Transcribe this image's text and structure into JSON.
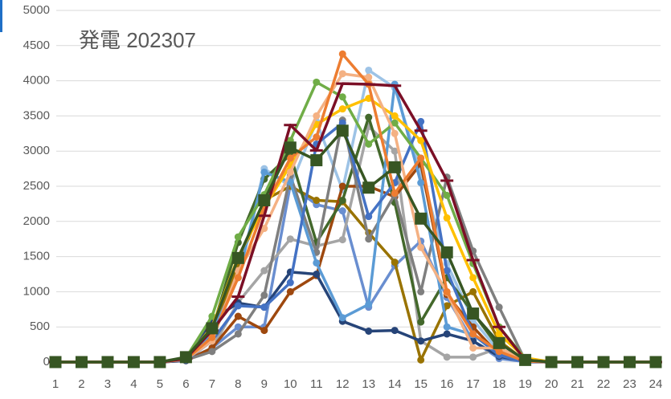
{
  "chart_data": {
    "type": "line",
    "title": "発電 202307",
    "categories": [
      "1",
      "2",
      "3",
      "4",
      "5",
      "6",
      "7",
      "8",
      "9",
      "10",
      "11",
      "12",
      "13",
      "14",
      "15",
      "16",
      "17",
      "18",
      "19",
      "20",
      "21",
      "22",
      "23",
      "24"
    ],
    "ylim": [
      0,
      5000
    ],
    "yticks": [
      0,
      500,
      1000,
      1500,
      2000,
      2500,
      3000,
      3500,
      4000,
      4500,
      5000
    ],
    "grid": true,
    "series": [
      {
        "color": "#698ed0",
        "marker": "circle",
        "values": [
          0,
          0,
          0,
          0,
          0,
          30,
          200,
          500,
          500,
          2520,
          2240,
          2150,
          780,
          1370,
          1720,
          920,
          300,
          50,
          5,
          0,
          0,
          0,
          0,
          0
        ]
      },
      {
        "color": "#9dc3e6",
        "marker": "circle",
        "values": [
          0,
          0,
          0,
          0,
          0,
          40,
          400,
          1200,
          2750,
          2500,
          3420,
          2450,
          4150,
          3900,
          2700,
          1400,
          600,
          150,
          20,
          0,
          0,
          0,
          0,
          0
        ]
      },
      {
        "color": "#a5a5a5",
        "marker": "circle",
        "values": [
          0,
          0,
          0,
          0,
          0,
          30,
          200,
          850,
          1300,
          1750,
          1650,
          1740,
          3350,
          3000,
          300,
          70,
          70,
          200,
          20,
          0,
          0,
          0,
          0,
          0
        ]
      },
      {
        "color": "#997300",
        "marker": "circle",
        "values": [
          0,
          0,
          0,
          0,
          0,
          30,
          400,
          1400,
          2300,
          2500,
          2300,
          2280,
          1840,
          1420,
          30,
          800,
          1000,
          300,
          20,
          0,
          0,
          0,
          0,
          0
        ]
      },
      {
        "color": "#9e480e",
        "marker": "circle",
        "values": [
          0,
          0,
          0,
          0,
          0,
          20,
          200,
          650,
          450,
          1000,
          1230,
          2500,
          2500,
          2350,
          2820,
          960,
          500,
          100,
          10,
          0,
          0,
          0,
          0,
          0
        ]
      },
      {
        "color": "#264478",
        "marker": "circle",
        "values": [
          0,
          0,
          0,
          0,
          0,
          20,
          600,
          840,
          780,
          1280,
          1250,
          580,
          440,
          450,
          300,
          400,
          300,
          80,
          10,
          0,
          0,
          0,
          0,
          0
        ]
      },
      {
        "color": "#43682b",
        "marker": "circle",
        "values": [
          0,
          0,
          0,
          0,
          0,
          40,
          450,
          1700,
          2600,
          2950,
          1700,
          2300,
          3480,
          2270,
          570,
          1200,
          700,
          200,
          20,
          0,
          0,
          0,
          0,
          0
        ]
      },
      {
        "color": "#7f7f7f",
        "marker": "circle",
        "values": [
          0,
          0,
          0,
          0,
          0,
          30,
          150,
          400,
          950,
          2650,
          1560,
          3440,
          1750,
          2380,
          1000,
          2630,
          1580,
          780,
          20,
          0,
          0,
          0,
          0,
          0
        ]
      },
      {
        "color": "#5b9bd5",
        "marker": "circle",
        "values": [
          0,
          0,
          0,
          0,
          0,
          40,
          420,
          1200,
          2700,
          2560,
          1410,
          630,
          820,
          3950,
          2550,
          500,
          390,
          100,
          10,
          0,
          0,
          0,
          0,
          0
        ]
      },
      {
        "color": "#4472c4",
        "marker": "circle",
        "values": [
          0,
          0,
          0,
          0,
          0,
          30,
          300,
          800,
          780,
          1130,
          3100,
          3400,
          2070,
          2550,
          3420,
          1300,
          400,
          100,
          0,
          0,
          0,
          0,
          0,
          0
        ]
      },
      {
        "color": "#70ad47",
        "marker": "circle",
        "values": [
          0,
          0,
          0,
          0,
          0,
          60,
          650,
          1780,
          2380,
          3150,
          3980,
          3770,
          3100,
          3400,
          2900,
          2370,
          1400,
          500,
          50,
          0,
          0,
          0,
          0,
          0
        ]
      },
      {
        "color": "#ffc000",
        "marker": "circle",
        "values": [
          0,
          0,
          0,
          0,
          0,
          50,
          500,
          1500,
          2200,
          2800,
          3380,
          3600,
          3750,
          3500,
          3150,
          2050,
          1200,
          400,
          60,
          0,
          0,
          0,
          0,
          0
        ]
      },
      {
        "color": "#f4b183",
        "marker": "circle",
        "values": [
          0,
          0,
          0,
          0,
          0,
          40,
          300,
          1300,
          1900,
          2700,
          3500,
          4100,
          4050,
          3250,
          1630,
          990,
          200,
          200,
          20,
          0,
          0,
          0,
          0,
          0
        ]
      },
      {
        "color": "#ed7d31",
        "marker": "circle",
        "values": [
          0,
          0,
          0,
          0,
          0,
          40,
          350,
          1200,
          2200,
          2900,
          3200,
          4380,
          3950,
          2400,
          2900,
          1000,
          400,
          150,
          10,
          0,
          0,
          0,
          0,
          0
        ]
      },
      {
        "color": "#7b0f26",
        "marker": "dash",
        "values": [
          0,
          0,
          0,
          0,
          0,
          50,
          450,
          930,
          2080,
          3370,
          3010,
          3960,
          3950,
          3930,
          3290,
          2580,
          1450,
          500,
          30,
          0,
          0,
          0,
          0,
          0
        ]
      },
      {
        "color": "#375623",
        "marker": "square",
        "values": [
          0,
          0,
          0,
          0,
          0,
          70,
          480,
          1480,
          2300,
          3050,
          2870,
          3290,
          2480,
          2770,
          2040,
          1560,
          690,
          270,
          30,
          0,
          0,
          0,
          0,
          0
        ]
      }
    ]
  }
}
